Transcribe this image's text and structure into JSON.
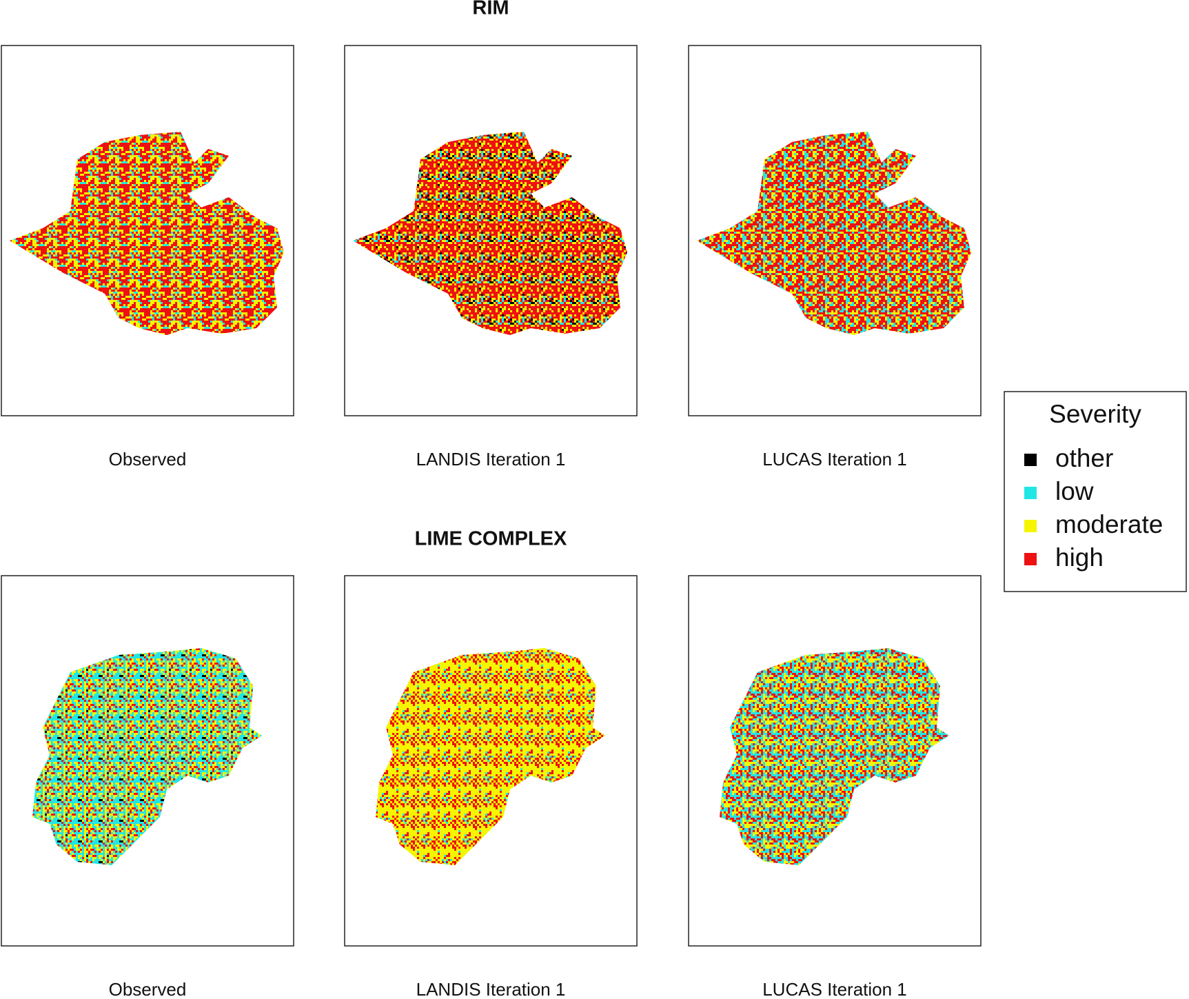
{
  "rows": [
    {
      "title": "RIM",
      "panels": [
        "Observed",
        "LANDIS Iteration 1",
        "LUCAS Iteration 1"
      ]
    },
    {
      "title": "LIME COMPLEX",
      "panels": [
        "Observed",
        "LANDIS Iteration 1",
        "LUCAS Iteration 1"
      ]
    }
  ],
  "legend": {
    "title": "Severity",
    "items": [
      {
        "label": "other",
        "color": "#000000"
      },
      {
        "label": "low",
        "color": "#22e6e6"
      },
      {
        "label": "moderate",
        "color": "#f5f500"
      },
      {
        "label": "high",
        "color": "#ee1111"
      }
    ]
  }
}
